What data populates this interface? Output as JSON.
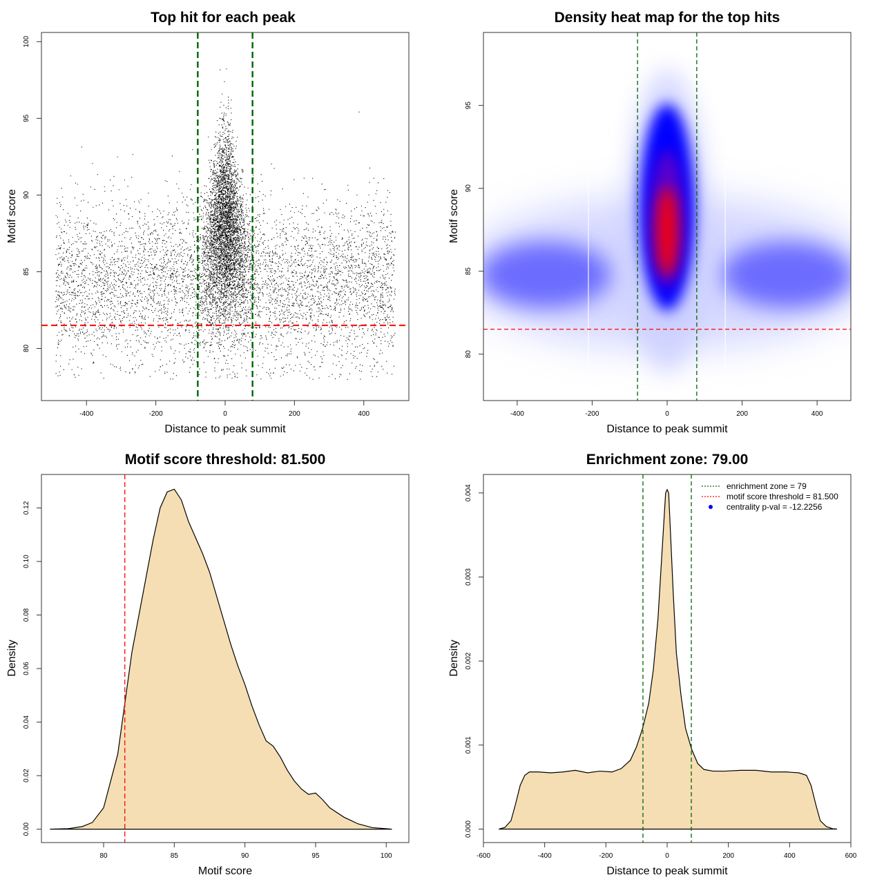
{
  "chart_data": [
    {
      "id": "scatter",
      "type": "scatter",
      "title": "Top hit for each peak",
      "xlabel": "Distance to peak summit",
      "ylabel": "Motif score",
      "xlim": [
        -530,
        530
      ],
      "ylim": [
        76.6,
        100.6
      ],
      "xticks": [
        -400,
        -200,
        0,
        200,
        400
      ],
      "yticks": [
        80,
        85,
        90,
        95,
        100
      ],
      "vlines": [
        -79,
        79
      ],
      "hline": 81.5,
      "colors": {
        "points": "#000000",
        "enrichment_zone": "#006400",
        "threshold": "#ff0000"
      },
      "grid": false
    },
    {
      "id": "heatmap",
      "type": "heatmap",
      "title": "Density heat map for the top hits",
      "xlabel": "Distance to peak summit",
      "ylabel": "Motif score",
      "xlim": [
        -490,
        490
      ],
      "ylim": [
        77.2,
        99.4
      ],
      "xticks": [
        -400,
        -200,
        0,
        200,
        400
      ],
      "yticks": [
        80,
        85,
        90,
        95
      ],
      "vlines": [
        -79,
        79
      ],
      "hline": 81.5,
      "colors": {
        "low": "#ffffff",
        "mid": "#0000ff",
        "high": "#ff0000",
        "enrichment_zone": "#006400",
        "threshold": "#ff0000"
      },
      "grid": false
    },
    {
      "id": "score_density",
      "type": "area",
      "title": "Motif score threshold: 81.500",
      "xlabel": "Motif score",
      "ylabel": "Density",
      "xlim": [
        75.6,
        101.6
      ],
      "ylim": [
        -0.005,
        0.1325
      ],
      "xticks": [
        80,
        85,
        90,
        95,
        100
      ],
      "yticks": [
        0.0,
        0.02,
        0.04,
        0.06,
        0.08,
        0.1,
        0.12
      ],
      "ytick_labels": [
        "0.00",
        "0.02",
        "0.04",
        "0.06",
        "0.08",
        "0.10",
        "0.12"
      ],
      "vlines": [
        81.5
      ],
      "x": [
        76.2,
        77.5,
        78.5,
        79.2,
        80,
        81,
        81.5,
        82,
        82.5,
        83,
        83.5,
        84,
        84.5,
        85,
        85.5,
        86,
        86.5,
        87,
        87.5,
        88,
        88.5,
        89,
        89.5,
        90,
        90.5,
        91,
        91.5,
        92,
        92.5,
        93,
        93.5,
        94,
        94.5,
        95,
        95.5,
        96,
        97,
        98,
        99,
        100.4
      ],
      "y": [
        0,
        0.0002,
        0.001,
        0.0025,
        0.008,
        0.028,
        0.047,
        0.066,
        0.08,
        0.094,
        0.108,
        0.12,
        0.126,
        0.127,
        0.123,
        0.115,
        0.109,
        0.103,
        0.096,
        0.087,
        0.078,
        0.069,
        0.061,
        0.054,
        0.046,
        0.039,
        0.033,
        0.031,
        0.027,
        0.022,
        0.018,
        0.015,
        0.013,
        0.0135,
        0.011,
        0.008,
        0.0045,
        0.002,
        0.0006,
        0
      ],
      "colors": {
        "fill": "#f5deb3",
        "line": "#000000",
        "threshold": "#ff0000"
      },
      "grid": false
    },
    {
      "id": "distance_density",
      "type": "area",
      "title": "Enrichment zone: 79.00",
      "xlabel": "Distance to peak summit",
      "ylabel": "Density",
      "xlim": [
        -600,
        600
      ],
      "ylim": [
        -0.00016,
        0.00422
      ],
      "xticks": [
        -600,
        -400,
        -200,
        0,
        200,
        400,
        600
      ],
      "yticks": [
        0.0,
        0.001,
        0.002,
        0.003,
        0.004
      ],
      "ytick_labels": [
        "0.000",
        "0.001",
        "0.002",
        "0.003",
        "0.004"
      ],
      "vlines": [
        -79,
        79
      ],
      "x": [
        -550,
        -530,
        -510,
        -495,
        -480,
        -465,
        -450,
        -420,
        -380,
        -340,
        -300,
        -260,
        -220,
        -180,
        -150,
        -120,
        -100,
        -80,
        -60,
        -45,
        -30,
        -20,
        -10,
        -5,
        0,
        5,
        10,
        20,
        30,
        45,
        60,
        80,
        100,
        120,
        150,
        190,
        240,
        290,
        340,
        390,
        430,
        455,
        470,
        485,
        500,
        520,
        540,
        555
      ],
      "y": [
        0,
        2e-05,
        0.0001,
        0.0003,
        0.00052,
        0.00064,
        0.00068,
        0.00068,
        0.00067,
        0.00068,
        0.0007,
        0.00067,
        0.00069,
        0.00068,
        0.00072,
        0.00082,
        0.00098,
        0.0012,
        0.0015,
        0.0019,
        0.0025,
        0.0031,
        0.0037,
        0.004,
        0.00404,
        0.004,
        0.0036,
        0.0028,
        0.0021,
        0.0016,
        0.0012,
        0.00095,
        0.00078,
        0.00071,
        0.00069,
        0.00069,
        0.0007,
        0.0007,
        0.00068,
        0.00068,
        0.00067,
        0.00064,
        0.00052,
        0.0003,
        0.0001,
        3e-05,
        5e-06,
        0
      ],
      "legend": [
        {
          "label": "enrichment zone = 79",
          "color": "#006400",
          "style": "dotted"
        },
        {
          "label": "motif score threshold = 81.500",
          "color": "#ff0000",
          "style": "dotted"
        },
        {
          "label": "centrality p-val = -12.2256",
          "color": "#0000ff",
          "style": "point"
        }
      ],
      "legend_position": "top-right",
      "colors": {
        "fill": "#f5deb3",
        "line": "#000000",
        "enrichment_zone": "#006400"
      },
      "grid": false
    }
  ]
}
